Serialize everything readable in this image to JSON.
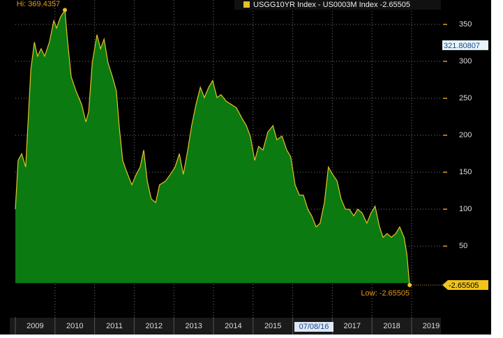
{
  "chart_data": {
    "type": "area",
    "legend": "USGG10YR Index - US0003M Index -2.65505",
    "hi_label": "Hi: 369.4357",
    "low_label": "Low: -2.65505",
    "cursor_label": "07/08/16",
    "last_value_label": {
      "value": -2.65505,
      "label": "-2.65505"
    },
    "marker_label": {
      "value": 321.80807,
      "label": "321.80807"
    },
    "x": [
      2009.0,
      2009.07,
      2009.16,
      2009.26,
      2009.39,
      2009.48,
      2009.56,
      2009.65,
      2009.74,
      2009.86,
      2009.97,
      2010.04,
      2010.14,
      2010.25,
      2010.32,
      2010.41,
      2010.53,
      2010.67,
      2010.78,
      2010.85,
      2010.94,
      2011.06,
      2011.15,
      2011.24,
      2011.34,
      2011.45,
      2011.55,
      2011.62,
      2011.71,
      2011.8,
      2011.94,
      2012.05,
      2012.15,
      2012.24,
      2012.33,
      2012.43,
      2012.54,
      2012.64,
      2012.79,
      2012.91,
      2013.03,
      2013.14,
      2013.24,
      2013.35,
      2013.45,
      2013.56,
      2013.67,
      2013.77,
      2013.88,
      2013.98,
      2014.09,
      2014.19,
      2014.32,
      2014.44,
      2014.58,
      2014.72,
      2014.83,
      2014.93,
      2015.04,
      2015.14,
      2015.25,
      2015.37,
      2015.5,
      2015.6,
      2015.73,
      2015.85,
      2015.95,
      2016.06,
      2016.17,
      2016.27,
      2016.38,
      2016.48,
      2016.59,
      2016.69,
      2016.8,
      2016.9,
      2017.01,
      2017.12,
      2017.22,
      2017.33,
      2017.43,
      2017.54,
      2017.64,
      2017.75,
      2017.87,
      2017.98,
      2018.08,
      2018.19,
      2018.28,
      2018.38,
      2018.49,
      2018.6,
      2018.7,
      2018.81,
      2018.88,
      2018.95
    ],
    "series": [
      {
        "name": "USGG10YR Index - US0003M Index",
        "color": "#e8c02a",
        "fill": "#0b7a10",
        "values": [
          100,
          166,
          175,
          157,
          289,
          326,
          307,
          317,
          307,
          326,
          355,
          345,
          360,
          369.4357,
          326,
          279,
          260,
          242,
          218,
          232,
          298,
          336,
          317,
          330,
          298,
          279,
          260,
          213,
          166,
          152,
          133,
          147,
          157,
          180,
          138,
          114,
          109,
          133,
          138,
          147,
          157,
          175,
          147,
          180,
          213,
          242,
          265,
          251,
          265,
          274,
          251,
          255,
          246,
          242,
          237,
          223,
          213,
          199,
          166,
          185,
          180,
          204,
          213,
          194,
          199,
          180,
          171,
          133,
          119,
          119,
          100,
          91,
          76,
          81,
          109,
          157,
          147,
          138,
          114,
          100,
          100,
          91,
          100,
          95,
          81,
          95,
          104,
          76,
          62,
          67,
          62,
          67,
          76,
          62,
          39,
          -2.65505
        ]
      }
    ],
    "xlim": [
      2009,
      2019.74
    ],
    "xticks": [
      2009,
      2010,
      2011,
      2012,
      2013,
      2014,
      2015,
      2016,
      2017,
      2018,
      2019
    ],
    "ylim": [
      -46,
      383
    ],
    "yticks": [
      50,
      100,
      150,
      200,
      250,
      300,
      350
    ],
    "grid": true
  }
}
